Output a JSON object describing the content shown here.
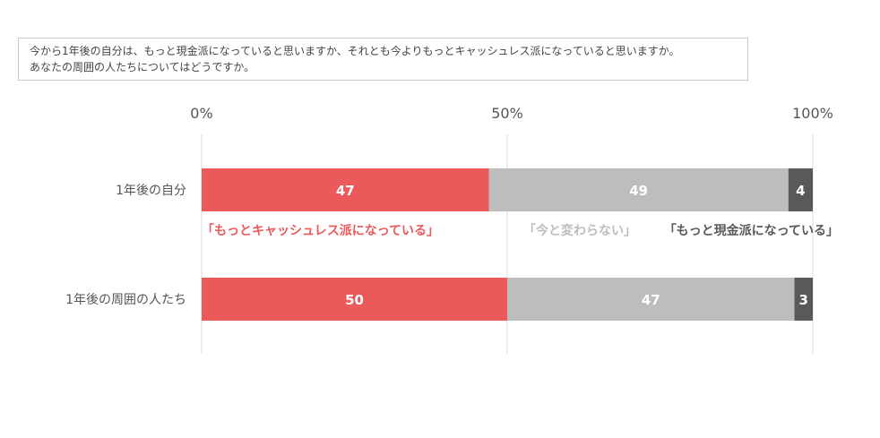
{
  "question": {
    "line1": "今から1年後の自分は、もっと現金派になっていると思いますか、それとも今よりもっとキャッシュレス派になっていると思いますか。",
    "line2": "あなたの周囲の人たちについてはどうですか。"
  },
  "colors": {
    "cashless": "#ea5a5a",
    "same": "#bdbdbd",
    "cash": "#595959",
    "grid": "#dddddd"
  },
  "chart_data": {
    "type": "bar",
    "orientation": "horizontal-stacked",
    "xlim": [
      0,
      100
    ],
    "xticks": [
      "0%",
      "50%",
      "100%"
    ],
    "categories": [
      "1年後の自分",
      "1年後の周囲の人たち"
    ],
    "series": [
      {
        "name": "「もっとキャッシュレス派になっている」",
        "values": [
          47,
          50
        ]
      },
      {
        "name": "「今と変わらない」",
        "values": [
          49,
          47
        ]
      },
      {
        "name": "「もっと現金派になっている」",
        "values": [
          4,
          3
        ]
      }
    ],
    "legend_placement": "inline-below-first-bar"
  }
}
